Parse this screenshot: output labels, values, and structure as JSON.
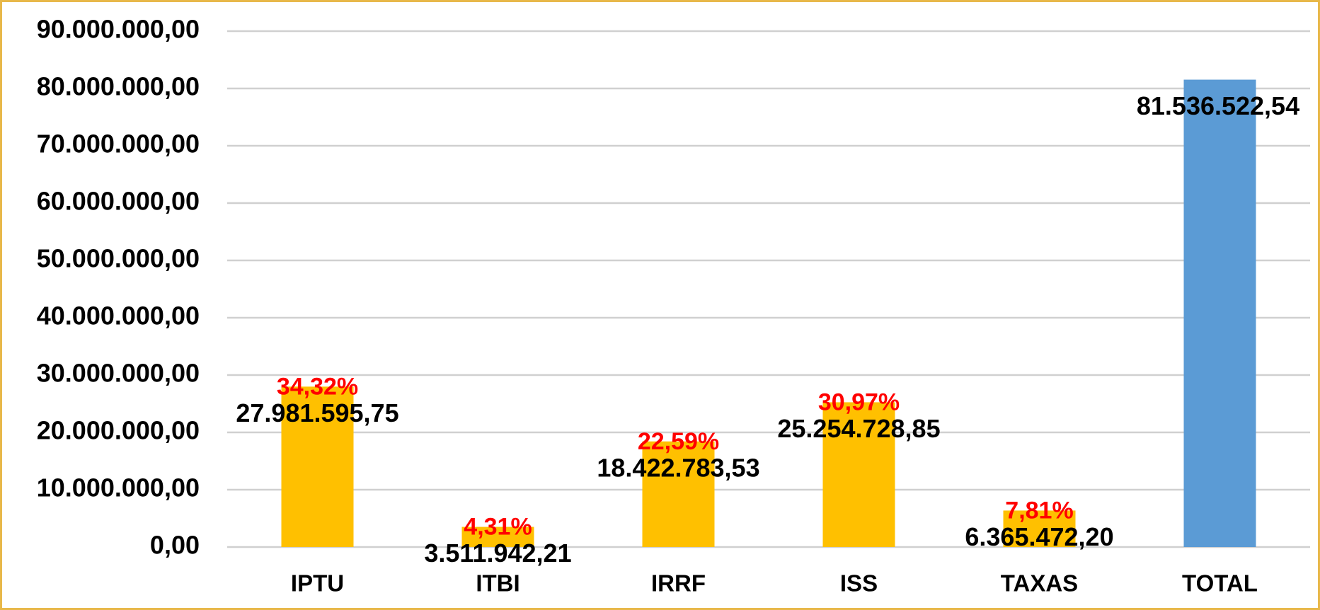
{
  "chart_data": {
    "type": "bar",
    "categories": [
      "IPTU",
      "ITBI",
      "IRRF",
      "ISS",
      "TAXAS",
      "TOTAL"
    ],
    "values": [
      27981595.75,
      3511942.21,
      18422783.53,
      25254728.85,
      6365472.2,
      81536522.54
    ],
    "value_labels": [
      "27.981.595,75",
      "3.511.942,21",
      "18.422.783,53",
      "25.254.728,85",
      "6.365.472,20",
      "81.536.522,54"
    ],
    "percent_labels": [
      "34,32%",
      "4,31%",
      "22,59%",
      "30,97%",
      "7,81%",
      null
    ],
    "colors": [
      "#FFC000",
      "#FFC000",
      "#FFC000",
      "#FFC000",
      "#FFC000",
      "#5B9BD5"
    ],
    "ylim": [
      0,
      90000000
    ],
    "yticks": [
      {
        "value": 0,
        "label": "0,00"
      },
      {
        "value": 10000000,
        "label": "10.000.000,00"
      },
      {
        "value": 20000000,
        "label": "20.000.000,00"
      },
      {
        "value": 30000000,
        "label": "30.000.000,00"
      },
      {
        "value": 40000000,
        "label": "40.000.000,00"
      },
      {
        "value": 50000000,
        "label": "50.000.000,00"
      },
      {
        "value": 60000000,
        "label": "60.000.000,00"
      },
      {
        "value": 70000000,
        "label": "70.000.000,00"
      },
      {
        "value": 80000000,
        "label": "80.000.000,00"
      },
      {
        "value": 90000000,
        "label": "90.000.000,00"
      }
    ],
    "grid": true
  }
}
